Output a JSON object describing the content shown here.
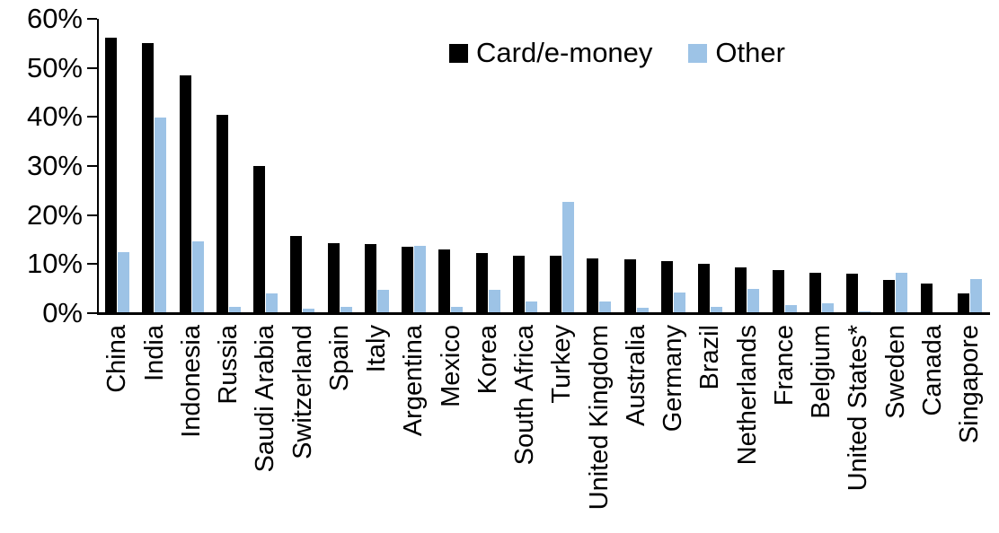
{
  "chart_data": {
    "type": "bar",
    "title": "",
    "xlabel": "",
    "ylabel": "",
    "categories": [
      "China",
      "India",
      "Indonesia",
      "Russia",
      "Saudi Arabia",
      "Switzerland",
      "Spain",
      "Italy",
      "Argentina",
      "Mexico",
      "Korea",
      "South Africa",
      "Turkey",
      "United Kingdom",
      "Australia",
      "Germany",
      "Brazil",
      "Netherlands",
      "France",
      "Belgium",
      "United States*",
      "Sweden",
      "Canada",
      "Singapore"
    ],
    "series": [
      {
        "name": "Card/e-money",
        "color": "#000000",
        "values": [
          56.2,
          55.0,
          48.4,
          40.5,
          30.0,
          15.7,
          14.3,
          14.1,
          13.5,
          13.0,
          12.3,
          11.8,
          11.8,
          11.2,
          11.0,
          10.7,
          10.1,
          9.3,
          8.7,
          8.3,
          8.0,
          6.7,
          6.1,
          4.1
        ]
      },
      {
        "name": "Other",
        "color": "#9DC3E6",
        "values": [
          12.5,
          39.8,
          14.7,
          1.2,
          4.1,
          0.9,
          1.2,
          4.7,
          13.8,
          1.3,
          4.7,
          2.4,
          22.7,
          2.4,
          1.1,
          4.2,
          1.3,
          4.9,
          1.6,
          2.1,
          0.3,
          8.2,
          0,
          6.9
        ]
      }
    ],
    "ylim": [
      0,
      60
    ],
    "y_tick_labels": [
      "0%",
      "10%",
      "20%",
      "30%",
      "40%",
      "50%",
      "60%"
    ],
    "grid": false,
    "legend_position": "top-center",
    "bar_unit": "percent"
  }
}
